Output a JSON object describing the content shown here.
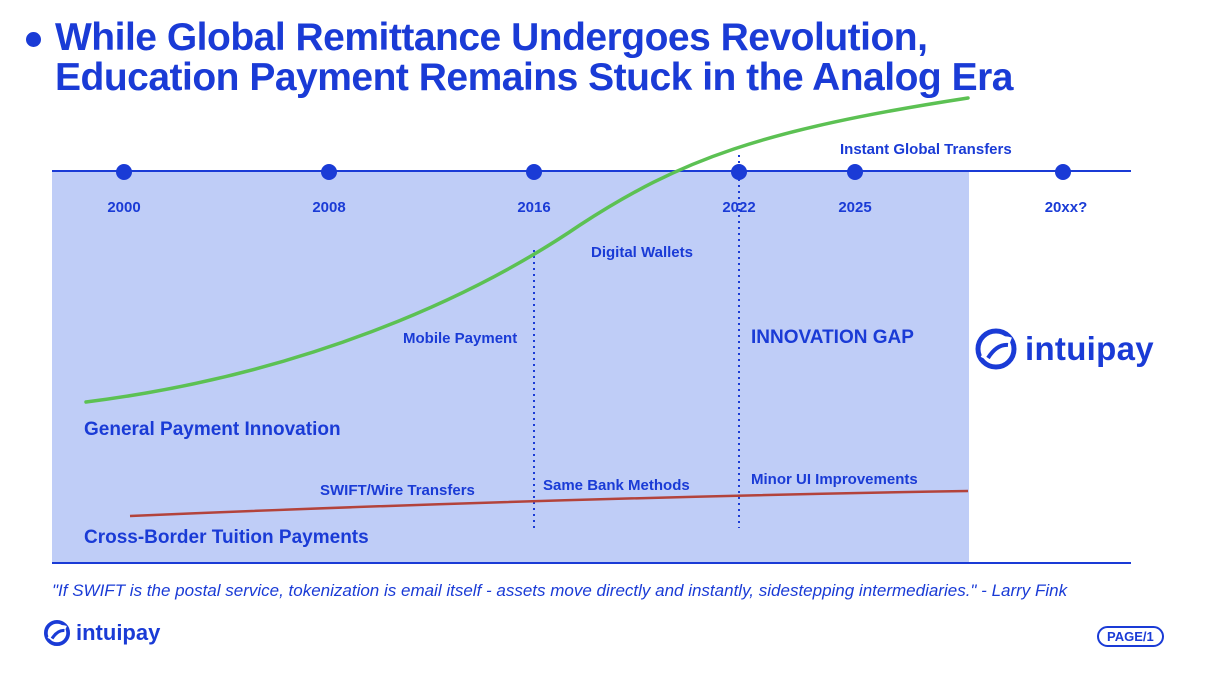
{
  "title": {
    "line1": "While Global Remittance Undergoes Revolution,",
    "line2": "Education Payment Remains Stuck in the Analog Era"
  },
  "timeline": {
    "years": [
      "2000",
      "2008",
      "2016",
      "2022",
      "2025",
      "20xx?"
    ]
  },
  "labels": {
    "instant_global_transfers": "Instant Global Transfers",
    "digital_wallets": "Digital Wallets",
    "mobile_payment": "Mobile Payment",
    "innovation_gap": "INNOVATION GAP",
    "general_payment_innovation": "General Payment Innovation",
    "swift_wire_transfers": "SWIFT/Wire Transfers",
    "same_bank_methods": "Same Bank Methods",
    "minor_ui_improvements": "Minor UI Improvements",
    "cross_border_tuition": "Cross-Border Tuition Payments"
  },
  "quote": "\"If SWIFT is the postal service, tokenization is email itself - assets move directly and instantly, sidestepping intermediaries.\" - Larry Fink",
  "brand": {
    "name": "intuipay"
  },
  "page_badge": "PAGE/1",
  "colors": {
    "primary": "#1a3bd6",
    "panel": "#bfcdf7",
    "innovation_curve": "#5cc153",
    "tuition_line": "#b3433b"
  }
}
